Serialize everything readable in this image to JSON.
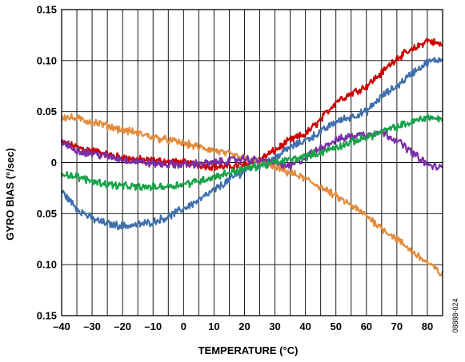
{
  "chart_data": {
    "type": "line",
    "xlabel": "TEMPERATURE (°C)",
    "ylabel": "GYRO BIAS (°/sec)",
    "figure_id": "08888-024",
    "xlim": [
      -40,
      85
    ],
    "ylim": [
      -0.15,
      0.15
    ],
    "x_ticks": [
      -40,
      -30,
      -20,
      -10,
      0,
      10,
      20,
      30,
      40,
      50,
      60,
      70,
      80
    ],
    "x_tick_labels": [
      "–40",
      "–30",
      "–20",
      "–10",
      "0",
      "10",
      "20",
      "30",
      "40",
      "50",
      "60",
      "70",
      "80"
    ],
    "y_ticks": [
      0.15,
      0.1,
      0.05,
      0,
      -0.05,
      -0.1,
      -0.15
    ],
    "y_tick_labels": [
      "0.15",
      "0.10",
      "0.05",
      "0",
      "0.05",
      "0.10",
      "0.15"
    ],
    "vertical_grid_step": 5,
    "grid": true,
    "legend": false,
    "series": [
      {
        "color": "#cc0000",
        "x": [
          -40,
          -35,
          -30,
          -25,
          -20,
          -15,
          -10,
          -5,
          0,
          5,
          10,
          15,
          20,
          25,
          30,
          35,
          40,
          45,
          50,
          55,
          60,
          65,
          70,
          75,
          80,
          85
        ],
        "y": [
          0.02,
          0.015,
          0.012,
          0.008,
          0.005,
          0.003,
          0.002,
          0.001,
          0.0,
          -0.002,
          -0.004,
          -0.004,
          -0.002,
          0.003,
          0.012,
          0.022,
          0.028,
          0.042,
          0.06,
          0.068,
          0.075,
          0.088,
          0.103,
          0.11,
          0.12,
          0.115
        ]
      },
      {
        "color": "#3f6fac",
        "x": [
          -40,
          -35,
          -30,
          -25,
          -20,
          -15,
          -10,
          -5,
          0,
          5,
          10,
          15,
          20,
          25,
          30,
          35,
          40,
          45,
          50,
          55,
          60,
          65,
          70,
          75,
          80,
          85
        ],
        "y": [
          -0.028,
          -0.045,
          -0.055,
          -0.06,
          -0.062,
          -0.061,
          -0.058,
          -0.053,
          -0.045,
          -0.037,
          -0.027,
          -0.017,
          -0.008,
          -0.002,
          0.005,
          0.015,
          0.022,
          0.03,
          0.04,
          0.045,
          0.05,
          0.065,
          0.075,
          0.088,
          0.098,
          0.102
        ]
      },
      {
        "color": "#e38b3a",
        "x": [
          -40,
          -35,
          -30,
          -25,
          -20,
          -15,
          -10,
          -5,
          0,
          5,
          10,
          15,
          20,
          25,
          30,
          35,
          40,
          45,
          50,
          55,
          60,
          65,
          70,
          75,
          80,
          85
        ],
        "y": [
          0.045,
          0.043,
          0.04,
          0.036,
          0.032,
          0.029,
          0.025,
          0.022,
          0.019,
          0.015,
          0.012,
          0.008,
          0.004,
          0.0,
          -0.005,
          -0.01,
          -0.016,
          -0.024,
          -0.033,
          -0.042,
          -0.052,
          -0.064,
          -0.075,
          -0.087,
          -0.098,
          -0.11
        ]
      },
      {
        "color": "#7b2fa6",
        "x": [
          -40,
          -35,
          -30,
          -25,
          -20,
          -15,
          -10,
          -5,
          0,
          5,
          10,
          15,
          20,
          25,
          30,
          35,
          40,
          45,
          50,
          55,
          60,
          65,
          70,
          75,
          80,
          85
        ],
        "y": [
          0.02,
          0.012,
          0.009,
          0.006,
          0.003,
          0.001,
          -0.001,
          -0.002,
          -0.002,
          -0.001,
          0.0,
          0.002,
          0.004,
          0.002,
          0.0,
          -0.004,
          0.005,
          0.015,
          0.022,
          0.026,
          0.028,
          0.03,
          0.022,
          0.01,
          -0.002,
          -0.006
        ]
      },
      {
        "color": "#17a34a",
        "x": [
          -40,
          -35,
          -30,
          -25,
          -20,
          -15,
          -10,
          -5,
          0,
          5,
          10,
          15,
          20,
          25,
          30,
          35,
          40,
          45,
          50,
          55,
          60,
          65,
          70,
          75,
          80,
          85
        ],
        "y": [
          -0.01,
          -0.014,
          -0.018,
          -0.021,
          -0.023,
          -0.024,
          -0.024,
          -0.023,
          -0.021,
          -0.018,
          -0.014,
          -0.01,
          -0.006,
          -0.003,
          0.0,
          0.003,
          0.006,
          0.01,
          0.015,
          0.02,
          0.025,
          0.03,
          0.035,
          0.04,
          0.045,
          0.042
        ]
      }
    ]
  }
}
